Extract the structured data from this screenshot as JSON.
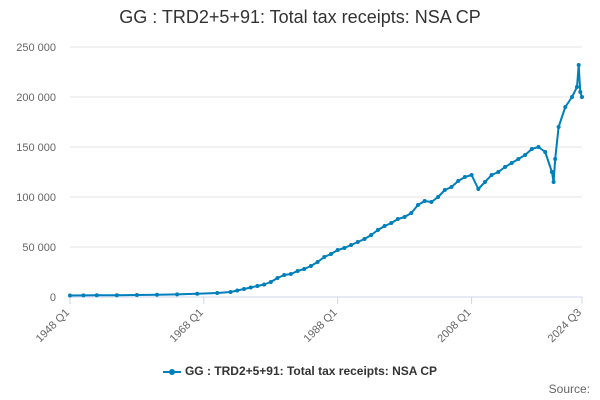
{
  "title": "GG : TRD2+5+91: Total tax receipts: NSA CP",
  "legend_label": "GG : TRD2+5+91: Total tax receipts: NSA CP",
  "source_label": "Source:",
  "series_color": "#007fbb",
  "chart_data": {
    "type": "line",
    "title": "GG : TRD2+5+91: Total tax receipts: NSA CP",
    "xlabel": "",
    "ylabel": "",
    "ylim": [
      0,
      250000
    ],
    "y_ticks": [
      0,
      50000,
      100000,
      150000,
      200000,
      250000
    ],
    "y_tick_labels": [
      "0",
      "50 000",
      "100 000",
      "150 000",
      "200 000",
      "250 000"
    ],
    "x_range": [
      "1948 Q1",
      "2024 Q3"
    ],
    "x_ticks": [
      "1948 Q1",
      "1968 Q1",
      "1988 Q1",
      "2008 Q1",
      "2024 Q3"
    ],
    "grid": "horizontal",
    "legend": "bottom",
    "series": [
      {
        "name": "GG : TRD2+5+91: Total tax receipts: NSA CP",
        "x": [
          "1948 Q1",
          "1950 Q1",
          "1952 Q1",
          "1955 Q1",
          "1958 Q1",
          "1961 Q1",
          "1964 Q1",
          "1967 Q1",
          "1970 Q1",
          "1972 Q1",
          "1973 Q1",
          "1974 Q1",
          "1975 Q1",
          "1976 Q1",
          "1977 Q1",
          "1978 Q1",
          "1979 Q1",
          "1980 Q1",
          "1981 Q1",
          "1982 Q1",
          "1983 Q1",
          "1984 Q1",
          "1985 Q1",
          "1986 Q1",
          "1987 Q1",
          "1988 Q1",
          "1989 Q1",
          "1990 Q1",
          "1991 Q1",
          "1992 Q1",
          "1993 Q1",
          "1994 Q1",
          "1995 Q1",
          "1996 Q1",
          "1997 Q1",
          "1998 Q1",
          "1999 Q1",
          "2000 Q1",
          "2001 Q1",
          "2002 Q1",
          "2003 Q1",
          "2004 Q1",
          "2005 Q1",
          "2006 Q1",
          "2007 Q1",
          "2008 Q1",
          "2009 Q1",
          "2010 Q1",
          "2011 Q1",
          "2012 Q1",
          "2013 Q1",
          "2014 Q1",
          "2015 Q1",
          "2016 Q1",
          "2017 Q1",
          "2018 Q1",
          "2019 Q1",
          "2020 Q1",
          "2020 Q2",
          "2020 Q3",
          "2021 Q1",
          "2022 Q1",
          "2023 Q1",
          "2023 Q4",
          "2024 Q1",
          "2024 Q2",
          "2024 Q3"
        ],
        "values": [
          1500,
          1600,
          1700,
          1800,
          2000,
          2300,
          2600,
          3200,
          4000,
          5000,
          6500,
          8000,
          9500,
          11000,
          12500,
          15000,
          19000,
          22000,
          23000,
          26000,
          28000,
          31000,
          35000,
          40000,
          43000,
          47000,
          49000,
          52000,
          55000,
          58000,
          62000,
          67000,
          71000,
          74000,
          78000,
          80000,
          84000,
          92000,
          96000,
          95000,
          100000,
          107000,
          110000,
          116000,
          120000,
          122000,
          108000,
          115000,
          122000,
          125000,
          130000,
          134000,
          138000,
          142000,
          148000,
          150000,
          145000,
          125000,
          115000,
          138000,
          170000,
          190000,
          200000,
          210000,
          232000,
          205000,
          200000
        ]
      }
    ]
  }
}
